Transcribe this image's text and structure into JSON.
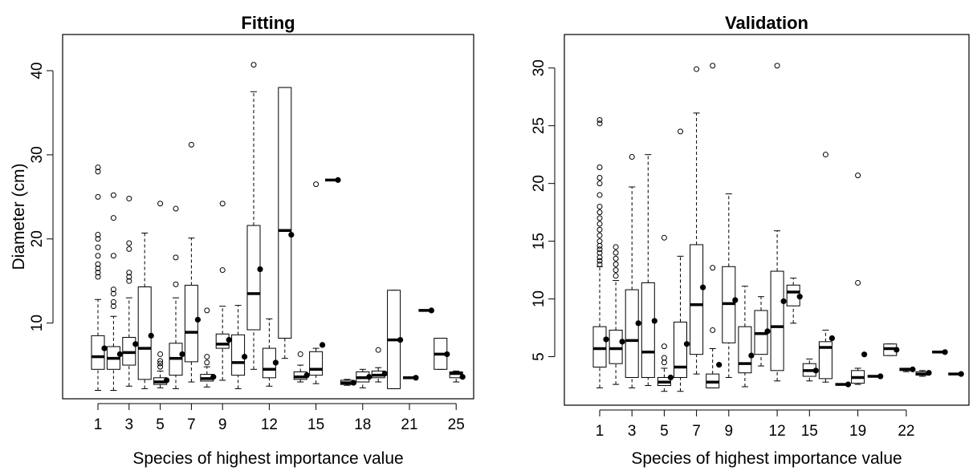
{
  "chart_data": [
    {
      "type": "boxplot",
      "title": "Fitting",
      "xlabel": "Species of highest importance value",
      "ylabel": "Diameter (cm)",
      "categories": [
        "1",
        null,
        "3",
        null,
        "5",
        null,
        "7",
        null,
        "9",
        null,
        null,
        "12",
        null,
        null,
        "15",
        null,
        null,
        "18",
        null,
        null,
        "21",
        null,
        null,
        "25"
      ],
      "min": [
        2,
        2,
        2.5,
        2.2,
        2.3,
        2.2,
        3,
        2.4,
        3.2,
        2.2,
        4.5,
        2.5,
        5.8,
        3,
        2.8,
        27,
        2.6,
        2.3,
        3,
        2.2,
        3.5,
        11.5,
        4.5,
        3
      ],
      "q1": [
        4.5,
        4.5,
        5,
        3.3,
        2.7,
        3.8,
        5.4,
        3.1,
        7,
        3.8,
        9.2,
        3.5,
        8.2,
        3.3,
        3.8,
        27,
        2.7,
        3,
        3.5,
        2.2,
        3.5,
        11.5,
        4.5,
        3.5
      ],
      "median": [
        6,
        5.8,
        6.5,
        7,
        3,
        5.8,
        8.9,
        3.4,
        7.5,
        5.3,
        13.5,
        4.5,
        21,
        3.6,
        4.5,
        27,
        2.9,
        3.5,
        3.8,
        8,
        3.5,
        11.5,
        6.3,
        4
      ],
      "q3": [
        8.5,
        7.2,
        8.3,
        14.3,
        3.5,
        7.6,
        14.5,
        3.9,
        8.7,
        8.6,
        21.6,
        7,
        38,
        4.2,
        6.6,
        27,
        3.2,
        4.2,
        4.3,
        13.9,
        3.5,
        11.5,
        8.2,
        4.2
      ],
      "max": [
        12.8,
        10.8,
        13,
        20.7,
        4.3,
        13,
        20.1,
        4.8,
        12,
        12.1,
        37.5,
        10.5,
        38,
        5,
        7,
        27,
        3.3,
        4.5,
        4.7,
        13.9,
        3.5,
        11.5,
        8.2,
        4.3
      ],
      "mean": [
        7,
        6.3,
        7.5,
        8.5,
        3.2,
        6.3,
        10.4,
        3.6,
        8,
        6,
        16.4,
        5.3,
        20.5,
        3.8,
        7.4,
        27,
        2.9,
        3.6,
        4,
        8,
        3.5,
        11.5,
        6.3,
        3.6
      ],
      "outliers": [
        [
          15.5,
          16,
          16.5,
          17,
          18,
          19,
          20,
          20.5,
          25,
          28,
          28.5
        ],
        [
          12,
          12.5,
          13.5,
          14,
          18,
          22.5,
          25.2
        ],
        [
          15,
          15.5,
          16,
          18.8,
          19.5,
          24.8
        ],
        [],
        [
          4.8,
          5.2,
          5.5,
          6.3,
          24.2
        ],
        [
          14.6,
          17.8,
          23.6
        ],
        [
          31.2
        ],
        [
          5.3,
          6,
          11.5
        ],
        [
          16.3,
          24.2
        ],
        [],
        [
          40.7
        ],
        [],
        [],
        [
          6.3
        ],
        [
          26.5
        ],
        [],
        [],
        [],
        [
          6.8
        ],
        [],
        [],
        [],
        [],
        []
      ],
      "ylim": [
        1,
        44.3
      ],
      "yticks": [
        10,
        20,
        30,
        40
      ]
    },
    {
      "type": "boxplot",
      "title": "Validation",
      "xlabel": "Species of highest importance value",
      "categories": [
        "1",
        null,
        "3",
        null,
        "5",
        null,
        "7",
        null,
        "9",
        null,
        null,
        "12",
        null,
        "15",
        null,
        null,
        "19",
        null,
        null,
        "22",
        null,
        null,
        null
      ],
      "min": [
        2.3,
        2.6,
        2.3,
        2.5,
        2,
        2,
        3.5,
        2.3,
        3.2,
        2.4,
        4.2,
        2.9,
        7.9,
        2.9,
        2.8,
        2.6,
        2.6,
        3.3,
        5.1,
        3.7,
        3.3,
        5.4,
        3.5
      ],
      "q1": [
        4.1,
        4.4,
        3.2,
        3.2,
        2.5,
        3.2,
        5.2,
        2.3,
        6.2,
        3.6,
        5.2,
        3.8,
        9.4,
        3.3,
        3.1,
        2.6,
        2.7,
        3.3,
        5.1,
        3.8,
        3.4,
        5.4,
        3.5
      ],
      "median": [
        5.7,
        5.7,
        6.4,
        5.4,
        2.8,
        4.1,
        9.5,
        2.8,
        9.6,
        4.4,
        7,
        7.6,
        10.6,
        3.8,
        5.8,
        2.6,
        3.2,
        3.3,
        5.7,
        3.9,
        3.5,
        5.4,
        3.5
      ],
      "q3": [
        7.6,
        7.3,
        10.8,
        11.4,
        3.2,
        8,
        14.7,
        3.5,
        12.8,
        7.6,
        9,
        12.4,
        11.2,
        4.4,
        6.3,
        2.6,
        3.8,
        3.3,
        6.1,
        4,
        3.7,
        5.4,
        3.5
      ],
      "max": [
        12.8,
        11.6,
        19.7,
        22.5,
        4,
        13.7,
        26.1,
        5.7,
        19.1,
        11.1,
        10.2,
        15.9,
        11.8,
        4.8,
        7.3,
        2.6,
        4,
        3.3,
        6.1,
        4,
        3.8,
        5.4,
        3.5
      ],
      "mean": [
        6.5,
        6.3,
        7.9,
        8.1,
        3.2,
        6.1,
        11,
        4.3,
        9.9,
        5.1,
        7.2,
        9.8,
        10.2,
        3.8,
        6.6,
        2.6,
        5.2,
        3.3,
        5.6,
        3.9,
        3.6,
        5.4,
        3.5
      ],
      "outliers": [
        [
          13,
          13.3,
          13.6,
          14,
          14.3,
          14.6,
          15,
          15.5,
          16,
          16.5,
          17,
          17.5,
          18,
          19,
          20,
          20.5,
          21.4,
          25.2,
          25.5
        ],
        [
          12,
          12.5,
          13,
          13.5,
          14,
          14.5
        ],
        [
          22.3
        ],
        [],
        [
          4.5,
          4.9,
          5.9,
          15.3
        ],
        [
          24.5
        ],
        [
          29.9
        ],
        [
          7.3,
          12.7,
          30.2
        ],
        [],
        [],
        [],
        [
          30.2
        ],
        [],
        [],
        [
          22.5
        ],
        [],
        [
          11.4,
          20.7
        ],
        [],
        [],
        [],
        [],
        [],
        []
      ],
      "ylim": [
        0.8,
        32.9
      ],
      "yticks": [
        5,
        10,
        15,
        20,
        25,
        30
      ]
    }
  ]
}
